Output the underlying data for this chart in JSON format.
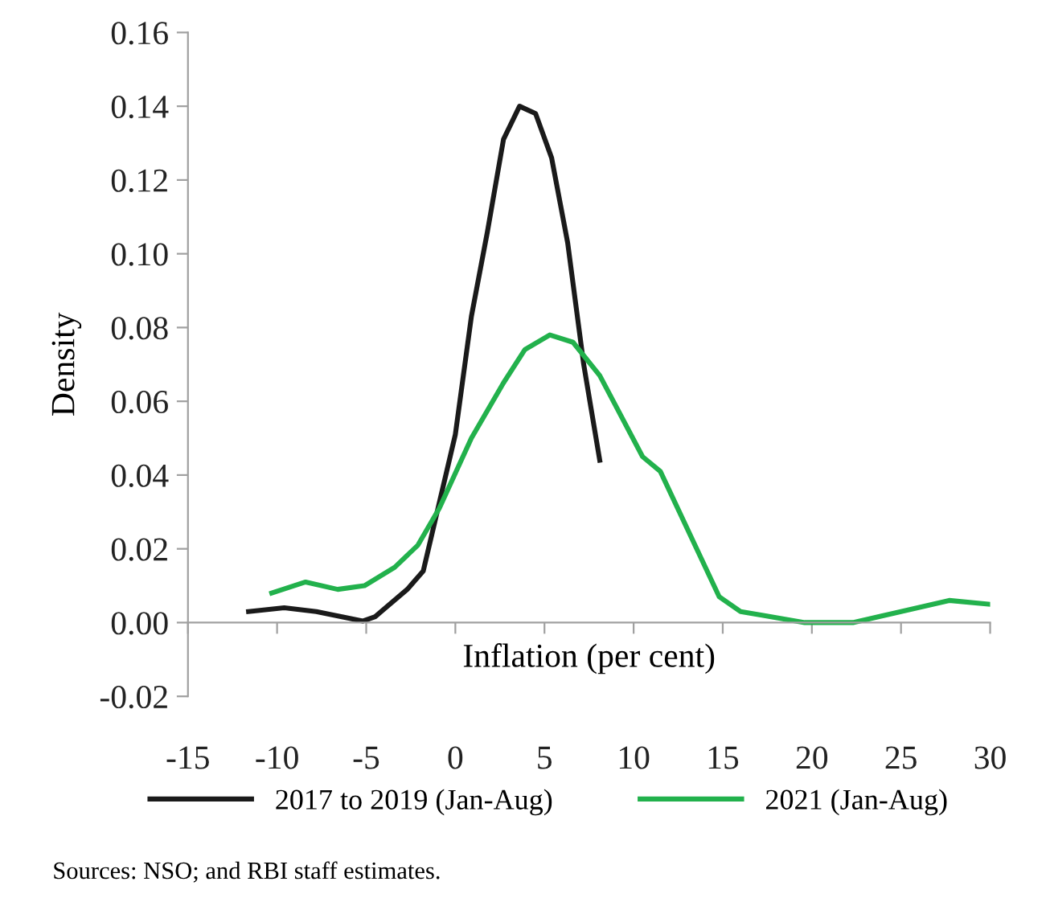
{
  "chart_data": {
    "type": "line",
    "xlabel": "Inflation (per cent)",
    "ylabel": "Density",
    "xlim": [
      -15,
      30
    ],
    "xticks": [
      -15,
      -10,
      -5,
      0,
      5,
      10,
      15,
      20,
      25,
      30
    ],
    "ylim": [
      -0.02,
      0.16
    ],
    "yticks": [
      -0.02,
      {
        "value": 0,
        "label": "0.00"
      },
      0.02,
      0.04,
      0.06,
      0.08,
      {
        "value": 0.1,
        "label": "0.10"
      },
      0.12,
      0.14,
      0.16
    ],
    "legend": "bottom",
    "marker": "none",
    "line_style": "solid",
    "annotations": [
      "Sources: NSO; and RBI staff estimates."
    ],
    "series": [
      {
        "name": "2017 to 2019 (Jan-Aug)",
        "color": "#1a1a1a",
        "x": [
          -11.6,
          -9.6,
          -7.8,
          -5.2,
          -4.5,
          -2.7,
          -1.8,
          0,
          0.9,
          1.8,
          2.7,
          3.6,
          4.5,
          5.4,
          6.3,
          7.2,
          8.1
        ],
        "values": [
          0.003,
          0.004,
          0.003,
          0.0004,
          0.0016,
          0.009,
          0.014,
          0.051,
          0.083,
          0.106,
          0.131,
          0.14,
          0.138,
          0.126,
          0.103,
          0.07,
          0.044
        ]
      },
      {
        "name": "2021 (Jan-Aug)",
        "color": "#22b14c",
        "x": [
          -10.3,
          -8.4,
          -6.6,
          -5.1,
          -3.4,
          -2.1,
          -0.9,
          0.9,
          2.7,
          3.9,
          5.3,
          6.6,
          8.1,
          10.5,
          11.5,
          14.8,
          16.0,
          17.2,
          19.6,
          22.3,
          25.0,
          27.7,
          29.9
        ],
        "values": [
          0.008,
          0.011,
          0.009,
          0.01,
          0.015,
          0.021,
          0.031,
          0.05,
          0.065,
          0.074,
          0.078,
          0.076,
          0.067,
          0.045,
          0.041,
          0.007,
          0.003,
          0.002,
          0.0,
          0.0,
          0.003,
          0.006,
          0.005
        ]
      }
    ]
  }
}
